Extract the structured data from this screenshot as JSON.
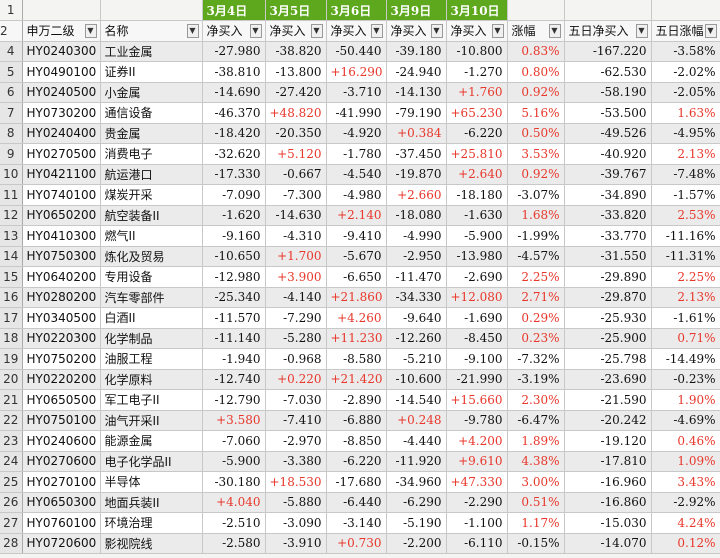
{
  "dates": [
    "3月4日",
    "3月5日",
    "3月6日",
    "3月9日",
    "3月10日"
  ],
  "headers": [
    "申万二级",
    "名称",
    "净买入",
    "净买入",
    "净买入",
    "净买入",
    "净买入",
    "涨幅",
    "五日净买入",
    "五日涨幅"
  ],
  "row_numbers": [
    "1",
    "2",
    "4",
    "5",
    "6",
    "7",
    "8",
    "9",
    "10",
    "11",
    "12",
    "13",
    "14",
    "15",
    "16",
    "17",
    "18",
    "19",
    "20",
    "21",
    "22",
    "23",
    "24",
    "25",
    "26",
    "27",
    "28"
  ],
  "rows": [
    [
      "HY0240300",
      "工业金属",
      "-27.980",
      "-38.820",
      "-50.440",
      "-39.180",
      "-10.800",
      "0.83%",
      "-167.220",
      "-3.58%"
    ],
    [
      "HY0490100",
      "证券II",
      "-38.810",
      "-13.800",
      "+16.290",
      "-24.940",
      "-1.270",
      "0.80%",
      "-62.530",
      "-2.02%"
    ],
    [
      "HY0240500",
      "小金属",
      "-14.690",
      "-27.420",
      "-3.710",
      "-14.130",
      "+1.760",
      "0.92%",
      "-58.190",
      "-2.05%"
    ],
    [
      "HY0730200",
      "通信设备",
      "-46.370",
      "+48.820",
      "-41.990",
      "-79.190",
      "+65.230",
      "5.16%",
      "-53.500",
      "1.63%"
    ],
    [
      "HY0240400",
      "贵金属",
      "-18.420",
      "-20.350",
      "-4.920",
      "+0.384",
      "-6.220",
      "0.50%",
      "-49.526",
      "-4.95%"
    ],
    [
      "HY0270500",
      "消费电子",
      "-32.620",
      "+5.120",
      "-1.780",
      "-37.450",
      "+25.810",
      "3.53%",
      "-40.920",
      "2.13%"
    ],
    [
      "HY0421100",
      "航运港口",
      "-17.330",
      "-0.667",
      "-4.540",
      "-19.870",
      "+2.640",
      "0.92%",
      "-39.767",
      "-7.48%"
    ],
    [
      "HY0740100",
      "煤炭开采",
      "-7.090",
      "-7.300",
      "-4.980",
      "+2.660",
      "-18.180",
      "-3.07%",
      "-34.890",
      "-1.57%"
    ],
    [
      "HY0650200",
      "航空装备II",
      "-1.620",
      "-14.630",
      "+2.140",
      "-18.080",
      "-1.630",
      "1.68%",
      "-33.820",
      "2.53%"
    ],
    [
      "HY0410300",
      "燃气II",
      "-9.160",
      "-4.310",
      "-9.410",
      "-4.990",
      "-5.900",
      "-1.99%",
      "-33.770",
      "-11.16%"
    ],
    [
      "HY0750300",
      "炼化及贸易",
      "-10.650",
      "+1.700",
      "-5.670",
      "-2.950",
      "-13.980",
      "-4.57%",
      "-31.550",
      "-11.31%"
    ],
    [
      "HY0640200",
      "专用设备",
      "-12.980",
      "+3.900",
      "-6.650",
      "-11.470",
      "-2.690",
      "2.25%",
      "-29.890",
      "2.25%"
    ],
    [
      "HY0280200",
      "汽车零部件",
      "-25.340",
      "-4.140",
      "+21.860",
      "-34.330",
      "+12.080",
      "2.71%",
      "-29.870",
      "2.13%"
    ],
    [
      "HY0340500",
      "白酒II",
      "-11.570",
      "-7.290",
      "+4.260",
      "-9.640",
      "-1.690",
      "0.29%",
      "-25.930",
      "-1.61%"
    ],
    [
      "HY0220300",
      "化学制品",
      "-11.140",
      "-5.280",
      "+11.230",
      "-12.260",
      "-8.450",
      "0.23%",
      "-25.900",
      "0.71%"
    ],
    [
      "HY0750200",
      "油服工程",
      "-1.940",
      "-0.968",
      "-8.580",
      "-5.210",
      "-9.100",
      "-7.32%",
      "-25.798",
      "-14.49%"
    ],
    [
      "HY0220200",
      "化学原料",
      "-12.740",
      "+0.220",
      "+21.420",
      "-10.600",
      "-21.990",
      "-3.19%",
      "-23.690",
      "-0.23%"
    ],
    [
      "HY0650500",
      "军工电子II",
      "-12.790",
      "-7.030",
      "-2.890",
      "-14.540",
      "+15.660",
      "2.30%",
      "-21.590",
      "1.90%"
    ],
    [
      "HY0750100",
      "油气开采II",
      "+3.580",
      "-7.410",
      "-6.880",
      "+0.248",
      "-9.780",
      "-6.47%",
      "-20.242",
      "-4.69%"
    ],
    [
      "HY0240600",
      "能源金属",
      "-7.060",
      "-2.970",
      "-8.850",
      "-4.440",
      "+4.200",
      "1.89%",
      "-19.120",
      "0.46%"
    ],
    [
      "HY0270600",
      "电子化学品II",
      "-5.900",
      "-3.380",
      "-6.220",
      "-11.920",
      "+9.610",
      "4.38%",
      "-17.810",
      "1.09%"
    ],
    [
      "HY0270100",
      "半导体",
      "-30.180",
      "+18.530",
      "-17.680",
      "-34.960",
      "+47.330",
      "3.00%",
      "-16.960",
      "3.43%"
    ],
    [
      "HY0650300",
      "地面兵装II",
      "+4.040",
      "-5.880",
      "-6.440",
      "-6.290",
      "-2.290",
      "0.51%",
      "-16.860",
      "-2.92%"
    ],
    [
      "HY0760100",
      "环境治理",
      "-2.510",
      "-3.090",
      "-3.140",
      "-5.190",
      "-1.100",
      "1.17%",
      "-15.030",
      "4.24%"
    ],
    [
      "HY0720600",
      "影视院线",
      "-2.580",
      "-3.910",
      "+0.730",
      "-2.200",
      "-6.110",
      "-0.15%",
      "-14.070",
      "0.12%"
    ]
  ]
}
